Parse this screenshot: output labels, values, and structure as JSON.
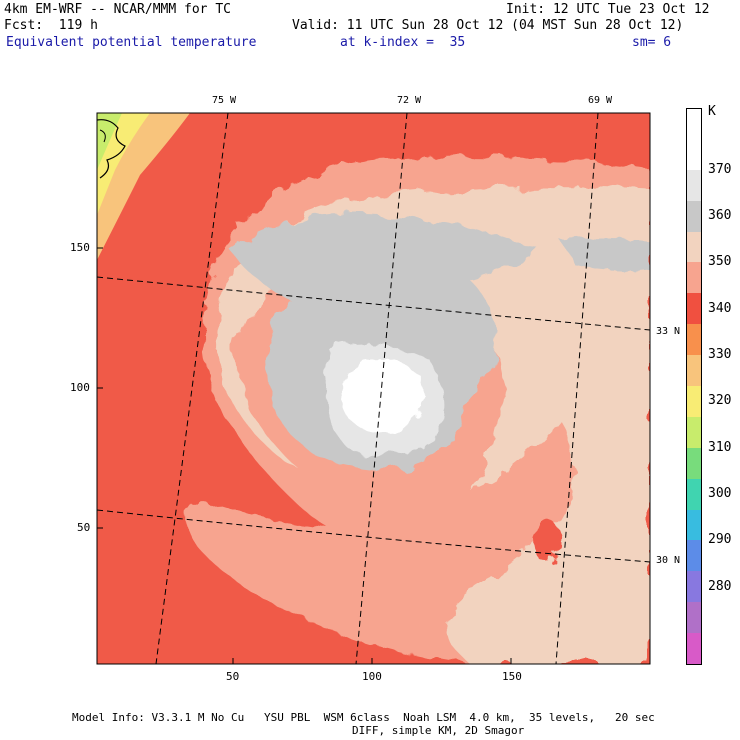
{
  "header": {
    "line1_left": "4km EM-WRF -- NCAR/MMM for TC",
    "line1_right": "Init: 12 UTC Tue 23 Oct 12",
    "line2_left": "Fcst:  119 h",
    "line2_right": "Valid: 11 UTC Sun 28 Oct 12 (04 MST Sun 28 Oct 12)",
    "field_name": "Equivalent potential temperature",
    "level_text": "at k-index =  35",
    "smooth_text": "sm= 6"
  },
  "axes": {
    "x_ticks": [
      "50",
      "100",
      "150"
    ],
    "y_ticks": [
      "150",
      "100",
      "50"
    ]
  },
  "graticule": {
    "longitudes": [
      "75 W",
      "72 W",
      "69 W"
    ],
    "latitudes": [
      "33 N",
      "30 N"
    ]
  },
  "colorbar": {
    "unit": "K",
    "levels": [
      {
        "label": "",
        "color": "#ffffff"
      },
      {
        "label": "370",
        "color": "#ffffff"
      },
      {
        "label": "360",
        "color": "#e6e6e6"
      },
      {
        "label": "350",
        "color": "#c8c8c8"
      },
      {
        "label": "340",
        "color": "#f2d3bf"
      },
      {
        "label": "330",
        "color": "#f7a48f"
      },
      {
        "label": "320",
        "color": "#f05040"
      },
      {
        "label": "310",
        "color": "#f8904c"
      },
      {
        "label": "300",
        "color": "#f8c47c"
      },
      {
        "label": "290",
        "color": "#f8ec74"
      },
      {
        "label": "280",
        "color": "#c8ec6c"
      },
      {
        "label": "",
        "color": "#78dc7c"
      },
      {
        "label": "",
        "color": "#40d4b0"
      },
      {
        "label": "",
        "color": "#38bce0"
      },
      {
        "label": "",
        "color": "#5c8ce8"
      },
      {
        "label": "",
        "color": "#8878e0"
      },
      {
        "label": "",
        "color": "#b070c8"
      },
      {
        "label": "",
        "color": "#d85ac8"
      }
    ]
  },
  "footer": {
    "line1": "Model Info: V3.3.1 M No Cu   YSU PBL  WSM 6class  Noah LSM  4.0 km,  35 levels,   20 sec",
    "line2": "DIFF, simple KM, 2D Smagor"
  }
}
